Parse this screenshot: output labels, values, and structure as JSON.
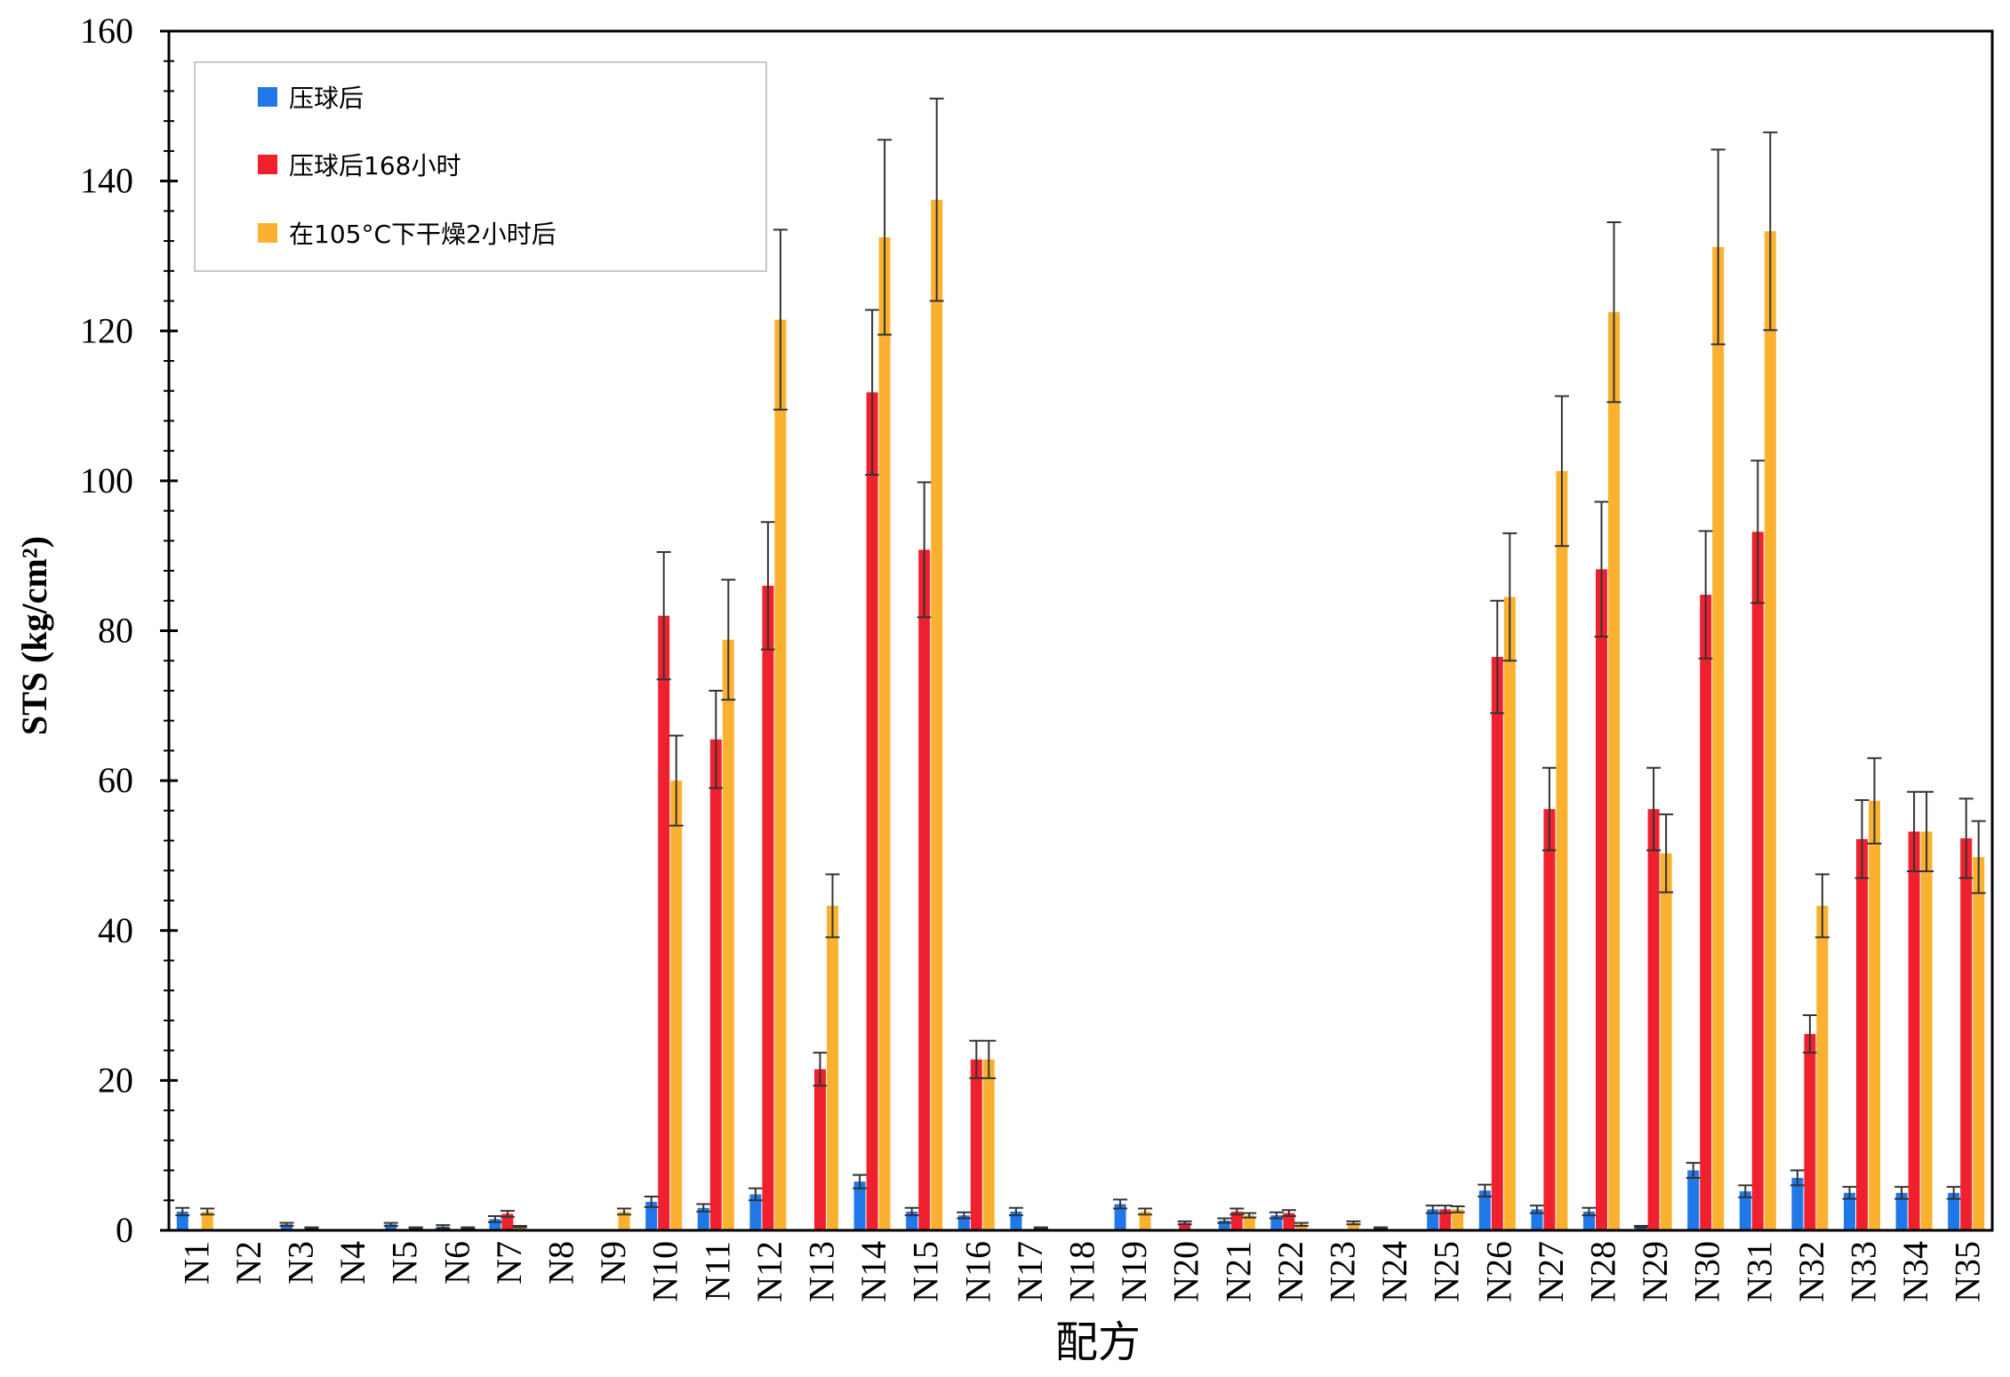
{
  "chart_data": {
    "type": "bar",
    "title": "",
    "xlabel": "配方",
    "ylabel": "STS (kg/cm²)",
    "ylim": [
      0,
      160
    ],
    "yticks": [
      0,
      20,
      40,
      60,
      80,
      100,
      120,
      140,
      160
    ],
    "grid": false,
    "legend_position": "top-left",
    "categories": [
      "N1",
      "N2",
      "N3",
      "N4",
      "N5",
      "N6",
      "N7",
      "N8",
      "N9",
      "N10",
      "N11",
      "N12",
      "N13",
      "N14",
      "N15",
      "N16",
      "N17",
      "N18",
      "N19",
      "N20",
      "N21",
      "N22",
      "N23",
      "N24",
      "N25",
      "N26",
      "N27",
      "N28",
      "N29",
      "N30",
      "N31",
      "N32",
      "N33",
      "N34",
      "N35"
    ],
    "series": [
      {
        "name": "压球后",
        "color": "#1f77e8",
        "values": [
          2.5,
          0,
          0.8,
          0,
          0.8,
          0.5,
          1.5,
          0,
          0,
          3.8,
          3.0,
          4.8,
          0,
          6.5,
          2.5,
          2.0,
          2.5,
          0,
          3.5,
          0,
          1.3,
          2.0,
          0,
          0.3,
          2.8,
          5.3,
          2.8,
          2.5,
          0.5,
          8.0,
          5.2,
          7.0,
          5.0,
          5.0,
          5.0
        ],
        "errors": [
          0.5,
          0,
          0.2,
          0,
          0.2,
          0.2,
          0.4,
          0,
          0,
          0.7,
          0.5,
          0.8,
          0,
          0.9,
          0.5,
          0.4,
          0.5,
          0,
          0.6,
          0,
          0.3,
          0.4,
          0,
          0.1,
          0.5,
          0.8,
          0.5,
          0.5,
          0.1,
          1.0,
          0.8,
          1.0,
          0.8,
          0.8,
          0.8
        ]
      },
      {
        "name": "压球后168小时",
        "color": "#f0212f",
        "values": [
          0,
          0,
          0,
          0,
          0,
          0,
          2.2,
          0,
          0,
          82.0,
          65.5,
          86.0,
          21.5,
          111.8,
          90.8,
          22.8,
          0,
          0,
          0,
          1.0,
          2.5,
          2.3,
          0,
          0,
          2.8,
          76.5,
          56.2,
          88.2,
          56.2,
          84.8,
          93.2,
          26.2,
          52.2,
          53.2,
          52.3
        ],
        "errors": [
          0,
          0,
          0,
          0,
          0,
          0,
          0.4,
          0,
          0,
          8.5,
          6.5,
          8.5,
          2.2,
          11.0,
          9.0,
          2.5,
          0,
          0,
          0,
          0.2,
          0.4,
          0.4,
          0,
          0,
          0.5,
          7.5,
          5.5,
          9.0,
          5.5,
          8.5,
          9.5,
          2.5,
          5.2,
          5.3,
          5.3
        ]
      },
      {
        "name": "在105°C下干燥2小时后",
        "color": "#fbb130",
        "values": [
          2.5,
          0,
          0.3,
          0,
          0.3,
          0.3,
          0.5,
          0,
          2.5,
          60.0,
          78.8,
          121.5,
          43.3,
          132.5,
          137.5,
          22.8,
          0.3,
          0,
          2.5,
          0,
          2.0,
          0.8,
          1.0,
          0,
          2.8,
          84.5,
          101.3,
          122.5,
          50.3,
          131.2,
          133.3,
          43.3,
          57.3,
          53.2,
          49.8
        ],
        "errors": [
          0.4,
          0,
          0.1,
          0,
          0.1,
          0.1,
          0.1,
          0,
          0.4,
          6.0,
          8.0,
          12.0,
          4.2,
          13.0,
          13.5,
          2.5,
          0.1,
          0,
          0.4,
          0,
          0.3,
          0.2,
          0.2,
          0,
          0.4,
          8.5,
          10.0,
          12.0,
          5.2,
          13.0,
          13.2,
          4.2,
          5.7,
          5.3,
          4.8
        ]
      }
    ]
  }
}
